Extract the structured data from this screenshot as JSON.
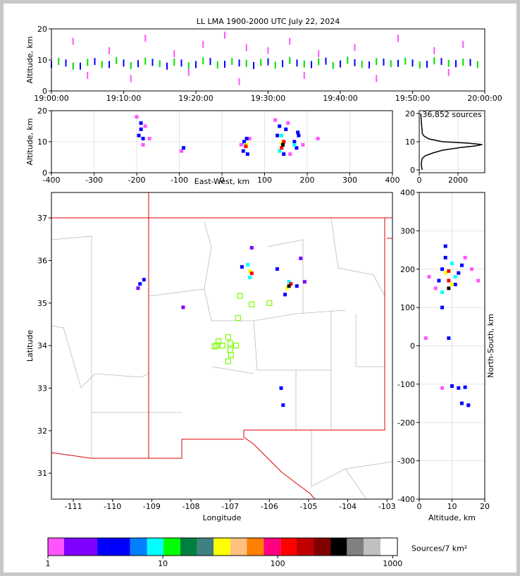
{
  "chart_data": [
    {
      "type": "scatter",
      "title": "LL LMA 1900-2000 UTC July 22, 2024",
      "ylabel": "Altitude, km",
      "xlim": [
        0,
        60
      ],
      "ylim": [
        0,
        20
      ],
      "grid": false,
      "xticks": [
        {
          "value": 0,
          "label": "19:00:00"
        },
        {
          "value": 10,
          "label": "19:10:00"
        },
        {
          "value": 20,
          "label": "19:20:00"
        },
        {
          "value": 30,
          "label": "19:30:00"
        },
        {
          "value": 40,
          "label": "19:40:00"
        },
        {
          "value": 50,
          "label": "19:50:00"
        },
        {
          "value": 60,
          "label": "20:00:00"
        }
      ],
      "yticks": [
        0,
        10,
        20
      ],
      "series": [
        {
          "color": "#0000ff",
          "x": [
            0,
            2,
            4,
            6,
            8,
            10,
            12,
            14,
            16,
            18,
            20,
            22,
            24,
            26,
            28,
            30,
            32,
            34,
            36,
            38,
            40,
            42,
            44,
            46,
            48,
            50,
            52,
            54,
            56,
            58
          ],
          "values": [
            8.5,
            9,
            8,
            9.5,
            8.5,
            9,
            8.8,
            9.2,
            8,
            9,
            8.5,
            9.5,
            8.6,
            9,
            8.2,
            9.4,
            8.8,
            9,
            8.5,
            9.6,
            8.7,
            9.1,
            8.4,
            9.3,
            8.9,
            9,
            8.6,
            9.5,
            8.8,
            9.2
          ]
        },
        {
          "color": "#00e000",
          "x": [
            1,
            3,
            5,
            7,
            9,
            11,
            13,
            15,
            17,
            19,
            21,
            23,
            25,
            27,
            29,
            31,
            33,
            35,
            37,
            39,
            41,
            43,
            45,
            47,
            49,
            51,
            53,
            55,
            57,
            59
          ],
          "values": [
            9.5,
            8,
            9.2,
            8.5,
            9.8,
            8.2,
            9.6,
            8.8,
            9.3,
            8.1,
            9.7,
            8.4,
            9.5,
            8.9,
            9.2,
            8.3,
            9.8,
            8.7,
            9.4,
            8.2,
            9.9,
            8.6,
            9.5,
            8.8,
            9.6,
            8.4,
            9.7,
            8.9,
            9.3,
            8.5
          ]
        },
        {
          "color": "#ff55ff",
          "x": [
            3,
            8,
            13,
            17,
            21,
            24,
            27,
            30,
            33,
            37,
            42,
            48,
            53,
            57,
            5,
            11,
            19,
            26,
            35,
            45,
            55
          ],
          "values": [
            16,
            13,
            17,
            12,
            15,
            18,
            14,
            13,
            16,
            12,
            14,
            17,
            13,
            15,
            5,
            4,
            6,
            3,
            5,
            4,
            6
          ]
        }
      ]
    },
    {
      "type": "scatter",
      "xlabel": "East-West, km",
      "ylabel": "Altitude, km",
      "xlim": [
        -400,
        400
      ],
      "ylim": [
        0,
        20
      ],
      "grid": true,
      "xticks": [
        -400,
        -300,
        -200,
        -100,
        0,
        100,
        200,
        300,
        400
      ],
      "yticks": [
        0,
        10,
        20
      ],
      "series": [
        {
          "color": "#ff55ff",
          "x": [
            -200,
            -180,
            -170,
            -185,
            -95,
            45,
            65,
            125,
            155,
            160,
            190,
            225
          ],
          "values": [
            18,
            15,
            11,
            9,
            7,
            9,
            11,
            17,
            16,
            6,
            9,
            11
          ]
        },
        {
          "color": "#0000ff",
          "x": [
            -195,
            -190,
            -185,
            -190,
            -90,
            50,
            52,
            60,
            58,
            130,
            135,
            150,
            145,
            170,
            180,
            175,
            178
          ],
          "values": [
            12,
            14,
            11,
            16,
            8,
            7,
            10,
            6,
            11,
            12,
            15,
            14,
            6,
            10,
            12,
            8,
            13
          ]
        },
        {
          "color": "#00ffff",
          "x": [
            55,
            140,
            135,
            170
          ],
          "values": [
            9,
            12,
            7,
            9
          ]
        },
        {
          "color": "#ffff00",
          "x": [
            140,
            58
          ],
          "values": [
            9.5,
            9
          ]
        },
        {
          "color": "#ff0000",
          "x": [
            56,
            145,
            140
          ],
          "values": [
            8.5,
            10,
            8
          ]
        },
        {
          "color": "#000000",
          "x": [
            143
          ],
          "values": [
            9
          ]
        }
      ]
    },
    {
      "type": "line",
      "annotation": "36,852 sources",
      "grid": true,
      "xlim": [
        0,
        3380
      ],
      "ylim": [
        -1,
        21
      ],
      "xticks": [
        0,
        2000
      ],
      "yticks": [
        0,
        10,
        20
      ],
      "color": "#000000",
      "altitudes": [
        0,
        2,
        4,
        5,
        6,
        7,
        8,
        8.5,
        9,
        9.5,
        10,
        11,
        12,
        13,
        14,
        16,
        18,
        20
      ],
      "values": [
        150,
        100,
        150,
        300,
        700,
        1200,
        2200,
        2900,
        3250,
        2500,
        1200,
        500,
        250,
        150,
        150,
        120,
        100,
        80
      ]
    },
    {
      "type": "scatter",
      "xlabel": "Longitude",
      "ylabel": "Latitude",
      "xlim": [
        -111.56,
        -102.86
      ],
      "ylim": [
        30.39,
        37.6
      ],
      "grid": false,
      "xticks": [
        -111,
        -110,
        -109,
        -108,
        -107,
        -106,
        -105,
        -104,
        -103
      ],
      "yticks": [
        31,
        32,
        33,
        34,
        35,
        36,
        37
      ],
      "series": [
        {
          "color": "#8000ff",
          "x": [
            -109.35,
            -108.2,
            -105.2,
            -106.45,
            -105.1
          ],
          "values": [
            35.35,
            34.9,
            36.05,
            36.3,
            35.5
          ]
        },
        {
          "color": "#0000ff",
          "x": [
            -109.3,
            -109.2,
            -106.7,
            -105.8,
            -105.6,
            -105.3,
            -105.7,
            -105.65
          ],
          "values": [
            35.45,
            35.55,
            35.85,
            35.8,
            35.2,
            35.4,
            33.0,
            32.6
          ]
        },
        {
          "color": "#00ffff",
          "x": [
            -106.5,
            -105.5,
            -106.55
          ],
          "values": [
            35.6,
            35.5,
            35.9
          ]
        },
        {
          "color": "#ffff00",
          "x": [
            -106.5,
            -105.55
          ],
          "values": [
            35.75,
            35.35
          ]
        },
        {
          "color": "#ff0000",
          "x": [
            -106.45,
            -105.45
          ],
          "values": [
            35.7,
            35.45
          ]
        },
        {
          "color": "#000000",
          "x": [
            -105.5
          ],
          "values": [
            35.4
          ]
        },
        {
          "color": "#7cfc00",
          "marker": "open-square",
          "x": [
            -106.75,
            -106.45,
            -106.0,
            -106.8,
            -107.35,
            -107.3,
            -107.2,
            -107.05,
            -107.0,
            -106.85,
            -107.0,
            -106.98,
            -107.05,
            -107.4
          ],
          "values": [
            35.17,
            34.97,
            35.0,
            34.65,
            34.0,
            34.1,
            34.0,
            34.2,
            34.05,
            34.0,
            33.9,
            33.78,
            33.63,
            33.98
          ]
        }
      ]
    },
    {
      "type": "scatter",
      "xlabel": "Altitude, km",
      "ylabel": "North-South, km",
      "ylabel_side": "right",
      "xlim": [
        0,
        20
      ],
      "ylim": [
        -400,
        400
      ],
      "grid": true,
      "xticks": [
        0,
        10,
        20
      ],
      "yticks": [
        -400,
        -300,
        -200,
        -100,
        0,
        100,
        200,
        300,
        400
      ],
      "series": [
        {
          "color": "#ff55ff",
          "x": [
            3,
            5,
            14,
            16,
            18,
            7,
            2,
            15
          ],
          "values": [
            180,
            150,
            230,
            200,
            170,
            -110,
            20,
            -155
          ]
        },
        {
          "color": "#0000ff",
          "x": [
            6,
            7,
            8,
            11,
            12,
            13,
            8,
            7,
            9,
            10,
            12,
            14,
            13,
            15
          ],
          "values": [
            170,
            200,
            230,
            160,
            190,
            210,
            260,
            100,
            20,
            -105,
            -110,
            -108,
            -150,
            -155
          ]
        },
        {
          "color": "#00ffff",
          "x": [
            7,
            11,
            10
          ],
          "values": [
            140,
            180,
            215
          ]
        },
        {
          "color": "#ffff00",
          "x": [
            8,
            10
          ],
          "values": [
            190,
            160
          ]
        },
        {
          "color": "#ff0000",
          "x": [
            9,
            9
          ],
          "values": [
            170,
            195
          ]
        },
        {
          "color": "#000000",
          "x": [
            9
          ],
          "values": [
            150
          ]
        }
      ]
    },
    {
      "type": "colorbar",
      "label": "Sources/7 km²",
      "log": true,
      "xlim": [
        1,
        1100
      ],
      "xticks": [
        1,
        10,
        100,
        1000
      ],
      "bounds": [
        1,
        1.38,
        2.69,
        5.2,
        7.3,
        10.1,
        14.2,
        19.9,
        27.7,
        38.8,
        53.8,
        75.5,
        106,
        146,
        205,
        288,
        400,
        560,
        785,
        1100
      ],
      "colors": [
        "#ff55ff",
        "#8000ff",
        "#0000ff",
        "#0080ff",
        "#00ffff",
        "#00ff00",
        "#008040",
        "#408080",
        "#ffff00",
        "#ffc080",
        "#ff8000",
        "#ff0080",
        "#ff0000",
        "#c00000",
        "#800000",
        "#000000",
        "#808080",
        "#c0c0c0",
        "#ffffff"
      ]
    }
  ]
}
